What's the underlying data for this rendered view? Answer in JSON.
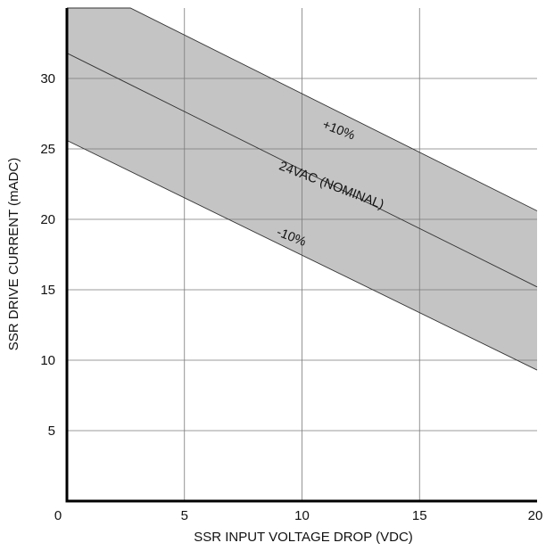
{
  "chart_data": {
    "type": "area",
    "xlabel": "SSR INPUT VOLTAGE DROP (VDC)",
    "ylabel": "SSR DRIVE CURRENT (mADC)",
    "xlim": [
      0,
      20
    ],
    "ylim": [
      0,
      35
    ],
    "x_ticks": [
      "0",
      "5",
      "10",
      "15",
      "20"
    ],
    "y_ticks": [
      "5",
      "10",
      "15",
      "20",
      "25",
      "30"
    ],
    "grid": true,
    "series": [
      {
        "name": "+10%",
        "x": [
          0,
          2.7,
          20
        ],
        "y": [
          35,
          35,
          20.6
        ]
      },
      {
        "name": "24VAC (NOMINAL)",
        "x": [
          0,
          20
        ],
        "y": [
          31.8,
          15.2
        ]
      },
      {
        "name": "-10%",
        "x": [
          0,
          20
        ],
        "y": [
          25.6,
          9.3
        ]
      }
    ],
    "band_fill": "#c4c4c4",
    "annotations": [
      "+10%",
      "24VAC (NOMINAL)",
      "-10%"
    ]
  }
}
